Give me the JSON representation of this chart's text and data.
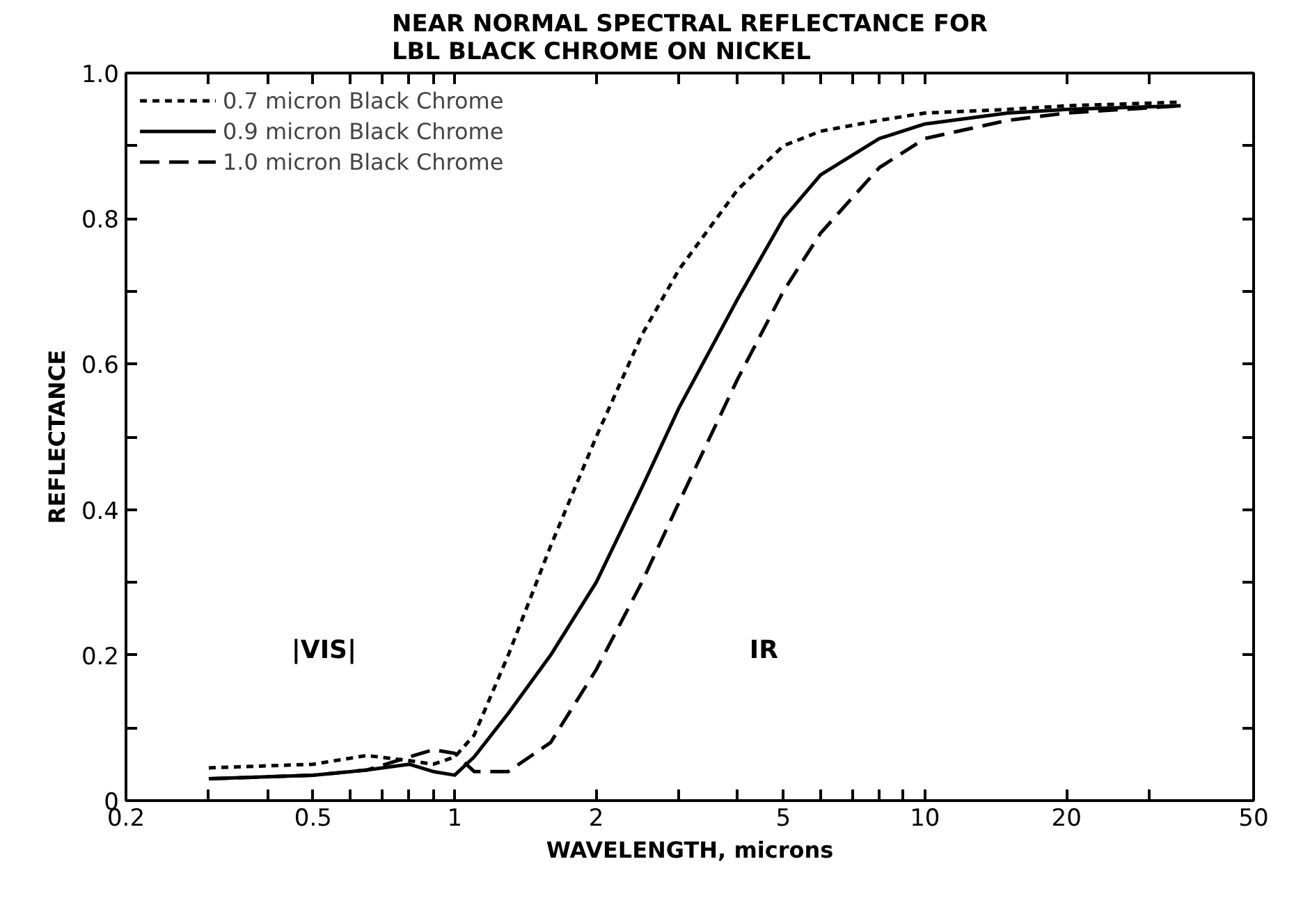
{
  "chart_data": {
    "type": "line",
    "title": "NEAR NORMAL SPECTRAL REFLECTANCE FOR\nLBL BLACK CHROME ON NICKEL",
    "xlabel": "WAVELENGTH, microns",
    "ylabel": "REFLECTANCE",
    "log": "x",
    "grid": false,
    "legend": "top left",
    "xlim": [
      0.2,
      50
    ],
    "ylim": [
      0,
      1
    ],
    "xticks": [
      0.2,
      {
        "value": 0.3,
        "label": null
      },
      {
        "value": 0.4,
        "label": null
      },
      0.5,
      {
        "value": 0.6,
        "label": null
      },
      {
        "value": 0.7,
        "label": null
      },
      {
        "value": 0.8,
        "label": null
      },
      {
        "value": 0.9,
        "label": null
      },
      1,
      2,
      {
        "value": 3,
        "label": null
      },
      {
        "value": 4,
        "label": null
      },
      5,
      {
        "value": 6,
        "label": null
      },
      {
        "value": 7,
        "label": null
      },
      {
        "value": 8,
        "label": null
      },
      {
        "value": 9,
        "label": null
      },
      10,
      20,
      {
        "value": 30,
        "label": null
      },
      50
    ],
    "yticks": [
      0,
      {
        "value": 0.1,
        "label": null
      },
      0.2,
      {
        "value": 0.3,
        "label": null
      },
      0.4,
      {
        "value": 0.5,
        "label": null
      },
      0.6,
      {
        "value": 0.7,
        "label": null
      },
      0.8,
      {
        "value": 0.9,
        "label": null
      },
      {
        "value": 1,
        "label": "1.0"
      }
    ],
    "x": [
      0.3,
      0.5,
      0.65,
      0.8,
      0.9,
      1.0,
      1.1,
      1.3,
      1.6,
      2,
      2.5,
      3,
      4,
      5,
      6,
      8,
      10,
      15,
      20,
      35
    ],
    "series": [
      {
        "name": "0.7 micron Black Chrome",
        "color": "#000000",
        "line_style": "dotted",
        "values": [
          0.045,
          0.05,
          0.062,
          0.055,
          0.05,
          0.06,
          0.09,
          0.2,
          0.35,
          0.5,
          0.64,
          0.73,
          0.84,
          0.9,
          0.92,
          0.935,
          0.945,
          0.95,
          0.955,
          0.96
        ]
      },
      {
        "name": "0.9 micron Black Chrome",
        "color": "#000000",
        "line_style": "solid",
        "values": [
          0.03,
          0.035,
          0.042,
          0.05,
          0.04,
          0.035,
          0.06,
          0.12,
          0.2,
          0.3,
          0.43,
          0.54,
          0.69,
          0.8,
          0.86,
          0.91,
          0.93,
          0.945,
          0.95,
          0.955
        ]
      },
      {
        "name": "1.0 micron Black Chrome",
        "color": "#000000",
        "line_style": "dashed",
        "values": [
          0.03,
          0.035,
          0.042,
          0.06,
          0.07,
          0.065,
          0.04,
          0.04,
          0.08,
          0.18,
          0.3,
          0.41,
          0.58,
          0.7,
          0.78,
          0.87,
          0.91,
          0.935,
          0.945,
          0.955
        ]
      }
    ],
    "annotations": [
      "|VIS|",
      "IR"
    ]
  }
}
